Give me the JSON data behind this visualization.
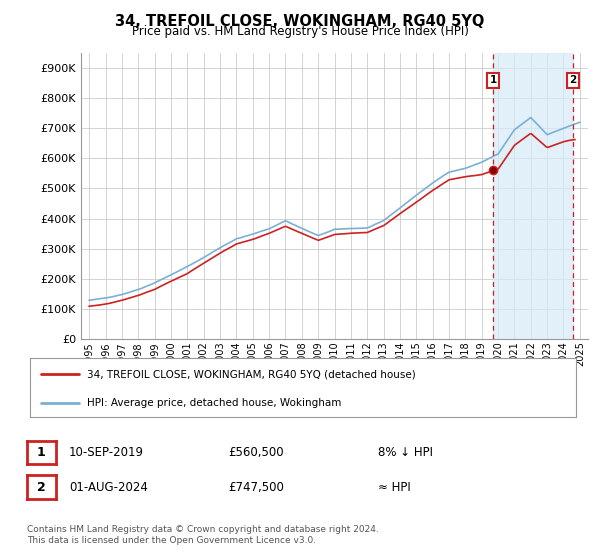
{
  "title": "34, TREFOIL CLOSE, WOKINGHAM, RG40 5YQ",
  "subtitle": "Price paid vs. HM Land Registry's House Price Index (HPI)",
  "ylabel_ticks": [
    "£0",
    "£100K",
    "£200K",
    "£300K",
    "£400K",
    "£500K",
    "£600K",
    "£700K",
    "£800K",
    "£900K"
  ],
  "ytick_values": [
    0,
    100000,
    200000,
    300000,
    400000,
    500000,
    600000,
    700000,
    800000,
    900000
  ],
  "ylim": [
    0,
    950000
  ],
  "hpi_color": "#7ab0d4",
  "price_color": "#cc2222",
  "vline_color": "#cc2222",
  "shade_color": "#d6eaf8",
  "background_color": "#ffffff",
  "grid_color": "#cccccc",
  "legend1_label": "34, TREFOIL CLOSE, WOKINGHAM, RG40 5YQ (detached house)",
  "legend2_label": "HPI: Average price, detached house, Wokingham",
  "annotation1_date": "10-SEP-2019",
  "annotation1_price": "£560,500",
  "annotation1_hpi": "8% ↓ HPI",
  "annotation2_date": "01-AUG-2024",
  "annotation2_price": "£747,500",
  "annotation2_hpi": "≈ HPI",
  "footer": "Contains HM Land Registry data © Crown copyright and database right 2024.\nThis data is licensed under the Open Government Licence v3.0.",
  "sale1_year": 2019.69,
  "sale1_value": 560500,
  "sale2_year": 2024.58,
  "sale2_value": 747500,
  "xlim_start": 1994.5,
  "xlim_end": 2025.5
}
